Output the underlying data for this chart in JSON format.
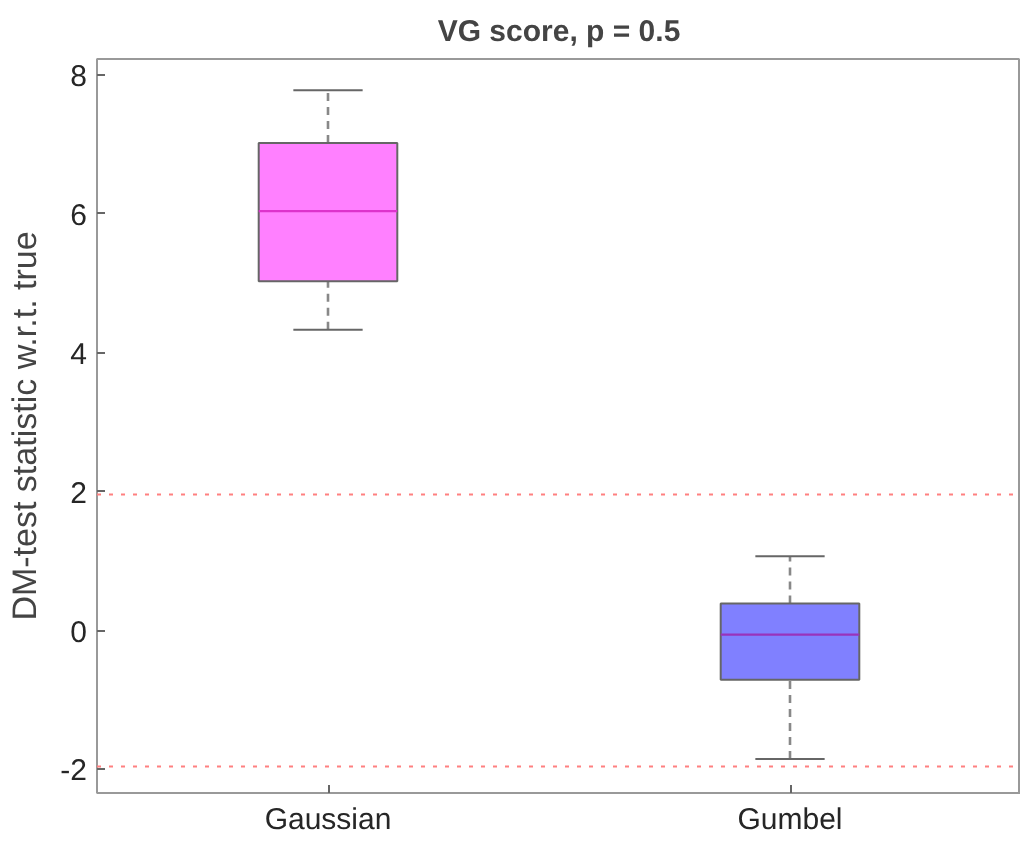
{
  "chart_data": {
    "type": "box",
    "title": "VG score, p = 0.5",
    "ylabel": "DM-test statistic w.r.t. true",
    "categories": [
      "Gaussian",
      "Gumbel"
    ],
    "boxes": [
      {
        "low": 4.33,
        "q1": 5.03,
        "median": 6.04,
        "q3": 7.02,
        "high": 7.78
      },
      {
        "low": -1.85,
        "q1": -0.71,
        "median": -0.06,
        "q3": 0.39,
        "high": 1.07
      }
    ],
    "colors": [
      "#ff80ff",
      "#8080ff"
    ],
    "ylim": [
      -2.34,
      8.23
    ],
    "yticks": [
      -2,
      0,
      2,
      4,
      6,
      8
    ],
    "grid": false,
    "ref_lines": [
      {
        "axis": "y",
        "value": 1.96,
        "color": "#ff8080",
        "line_style": "dotted"
      },
      {
        "axis": "y",
        "value": -1.96,
        "color": "#ff8080",
        "line_style": "dotted"
      }
    ]
  }
}
